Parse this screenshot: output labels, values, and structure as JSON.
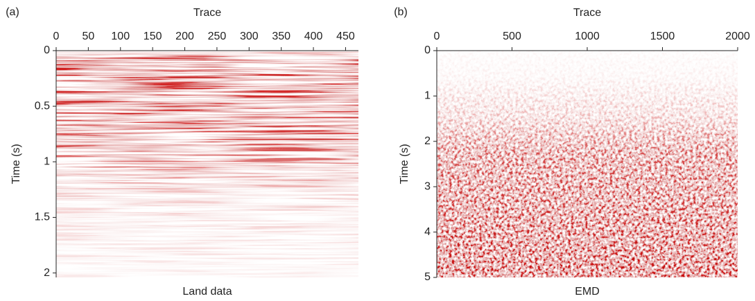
{
  "chart_data": [
    {
      "type": "heatmap",
      "panel_label": "(a)",
      "x_label": "Trace",
      "y_label": "Time (s)",
      "caption": "Land data",
      "xlim": [
        0,
        470
      ],
      "xticks": [
        0,
        50,
        100,
        150,
        200,
        250,
        300,
        350,
        400,
        450
      ],
      "ylim": [
        0,
        2.04
      ],
      "yticks": [
        0,
        0.5,
        1,
        1.5,
        2
      ]
    },
    {
      "type": "heatmap",
      "panel_label": "(b)",
      "x_label": "Trace",
      "y_label": "Time (s)",
      "caption": "EMD",
      "xlim": [
        0,
        2000
      ],
      "xticks": [
        0,
        500,
        1000,
        1500,
        2000
      ],
      "ylim": [
        0,
        5
      ],
      "yticks": [
        0,
        1,
        2,
        3,
        4,
        5
      ]
    }
  ]
}
